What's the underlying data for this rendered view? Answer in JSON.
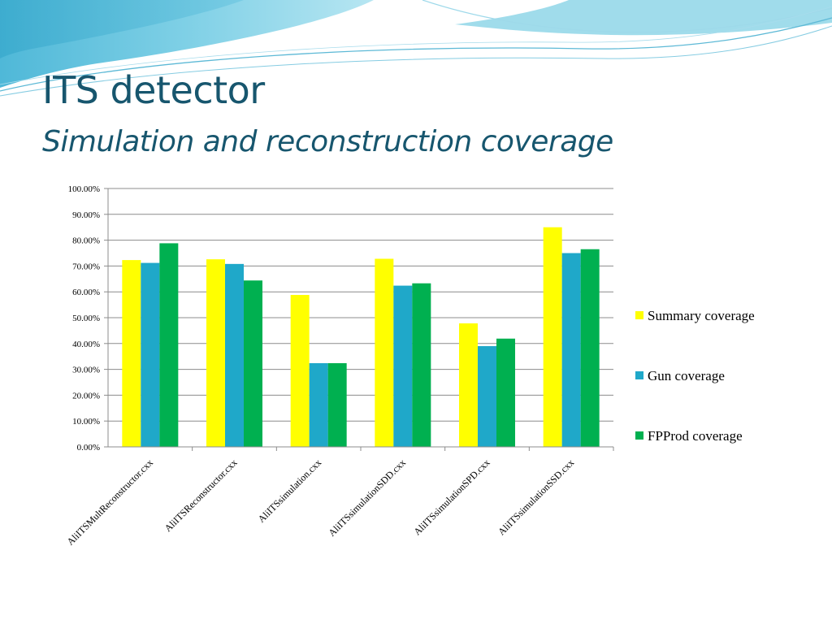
{
  "slide": {
    "title": "ITS detector",
    "subtitle": "Simulation and reconstruction coverage"
  },
  "chart_data": {
    "type": "bar",
    "categories": [
      "AliITSMultReconstructor.cxx",
      "AliITSReconstructor.cxx",
      "AliITSsimulation.cxx",
      "AliITSsimulationSDD.cxx",
      "AliITSsimulationSPD.cxx",
      "AliITSsimulationSSD.cxx"
    ],
    "series": [
      {
        "name": "Summary coverage",
        "color": "#ffff00",
        "values": [
          72.3,
          72.6,
          58.8,
          72.8,
          47.8,
          85.0
        ]
      },
      {
        "name": "Gun coverage",
        "color": "#1fa8c9",
        "values": [
          71.2,
          70.8,
          32.4,
          62.4,
          39.0,
          75.0
        ]
      },
      {
        "name": "FPProd coverage",
        "color": "#00b050",
        "values": [
          78.8,
          64.4,
          32.4,
          63.3,
          41.9,
          76.5
        ]
      }
    ],
    "yticks": [
      "0.00%",
      "10.00%",
      "20.00%",
      "30.00%",
      "40.00%",
      "50.00%",
      "60.00%",
      "70.00%",
      "80.00%",
      "90.00%",
      "100.00%"
    ],
    "ylim": [
      0,
      100
    ],
    "grid": true,
    "legend_position": "right"
  }
}
